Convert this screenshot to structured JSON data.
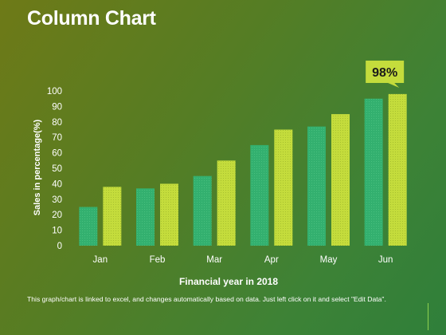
{
  "title": "Column Chart",
  "footer_note": "This graph/chart is linked to excel, and changes automatically based on data. Just left click on it and select \"Edit Data\".",
  "colors": {
    "series_a": "#33b06f",
    "series_b": "#c4dc3c",
    "callout_bg": "#c4dc3c",
    "text": "#ffffff"
  },
  "chart_data": {
    "type": "bar",
    "xlabel": "Financial year in 2018",
    "ylabel": "Sales in percentage(%)",
    "categories": [
      "Jan",
      "Feb",
      "Mar",
      "Apr",
      "May",
      "Jun"
    ],
    "series": [
      {
        "values": [
          25,
          37,
          45,
          65,
          77,
          95
        ]
      },
      {
        "values": [
          38,
          40,
          55,
          75,
          85,
          98
        ]
      }
    ],
    "ylim": [
      0,
      100
    ],
    "yticks": [
      0,
      10,
      20,
      30,
      40,
      50,
      60,
      70,
      80,
      90,
      100
    ],
    "grid": false,
    "legend": "none",
    "annotation": {
      "text": "98%",
      "category": "Jun",
      "series_index": 1
    }
  }
}
